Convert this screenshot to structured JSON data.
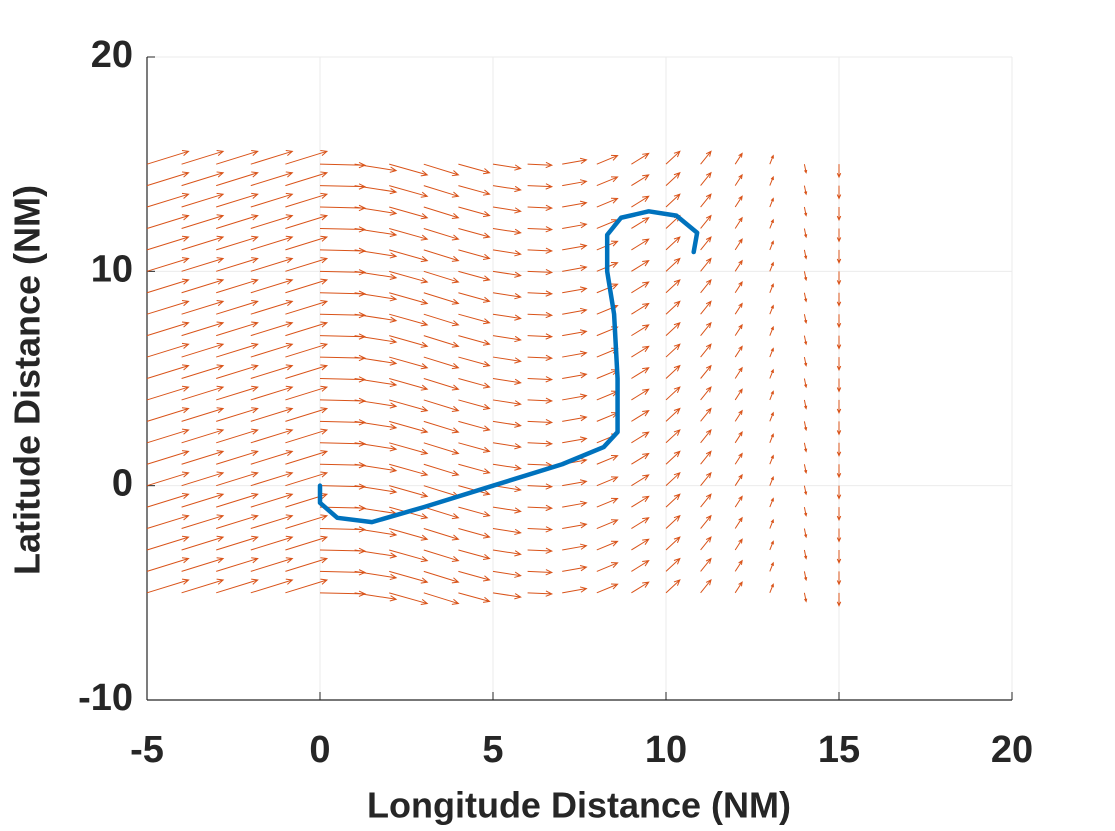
{
  "chart_data": {
    "type": "line",
    "xlabel": "Longitude Distance (NM)",
    "ylabel": "Latitude Distance (NM)",
    "xlim": [
      -5,
      20
    ],
    "ylim": [
      -10,
      20
    ],
    "xticks": [
      -5,
      0,
      5,
      10,
      15,
      20
    ],
    "yticks": [
      -10,
      0,
      10,
      20
    ],
    "grid": true,
    "series": [
      {
        "color": "#0072bd",
        "x": [
          0,
          0,
          0.5,
          1.5,
          3,
          5,
          7,
          8.2,
          8.6,
          8.6,
          8.5,
          8.3,
          8.3,
          8.7,
          9.5,
          10.3,
          10.9,
          10.8
        ],
        "values": [
          0,
          -0.8,
          -1.5,
          -1.7,
          -1.0,
          0,
          1,
          1.8,
          2.5,
          5,
          8,
          10,
          11.7,
          12.5,
          12.8,
          12.6,
          11.8,
          10.9
        ]
      }
    ],
    "quiver": {
      "color": "#d95319",
      "x": [
        -5,
        -4,
        -3,
        -2,
        -1,
        0,
        1,
        2,
        3,
        4,
        5,
        6,
        7,
        8,
        9,
        10,
        11,
        12,
        13,
        14,
        15
      ],
      "y": [
        -5,
        -4,
        -3,
        -2,
        -1,
        0,
        1,
        2,
        3,
        4,
        5,
        6,
        7,
        8,
        9,
        10,
        11,
        12,
        13,
        14,
        15
      ],
      "u": [
        1.2,
        1.2,
        1.2,
        1.2,
        1.2,
        1.3,
        1.2,
        1.1,
        1.0,
        0.9,
        0.8,
        0.7,
        0.7,
        0.6,
        0.5,
        0.4,
        0.3,
        0.2,
        0.1,
        0.05,
        0
      ],
      "v": [
        0.6,
        0.6,
        0.6,
        0.6,
        0.6,
        -0.05,
        -0.3,
        -0.5,
        -0.5,
        -0.4,
        -0.2,
        -0.05,
        0.2,
        0.4,
        0.5,
        0.6,
        0.6,
        0.5,
        0.4,
        -0.4,
        -0.6
      ]
    }
  }
}
